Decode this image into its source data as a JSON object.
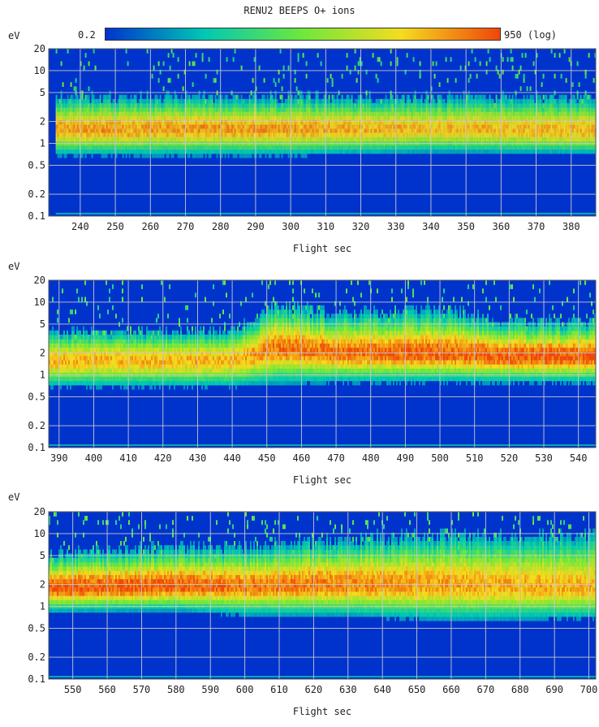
{
  "chart_data": {
    "type": "heatmap",
    "title": "RENU2 BEEPS O+ ions",
    "colorbar": {
      "min_label": "0.2",
      "max_label": "950 (log)",
      "min": 0.2,
      "max": 950,
      "scale": "log",
      "colors": [
        "#0033cc",
        "#00c8b4",
        "#6ee83c",
        "#f5dc1e",
        "#f0460a"
      ]
    },
    "ylabel": "eV",
    "yscale": "log",
    "ylim": [
      0.1,
      20
    ],
    "yticks": [
      0.1,
      0.2,
      0.5,
      1,
      2,
      5,
      10,
      20
    ],
    "ytick_labels": [
      "0.1",
      "0.2",
      "0.5",
      "1",
      "2",
      "5",
      "10",
      "20"
    ],
    "xlabel": "Flight sec",
    "grid": true,
    "panels": [
      {
        "xlim": [
          231,
          387
        ],
        "xticks": [
          240,
          250,
          260,
          270,
          280,
          290,
          300,
          310,
          320,
          330,
          340,
          350,
          360,
          370,
          380
        ],
        "xtick_labels": [
          "240",
          "250",
          "260",
          "270",
          "280",
          "290",
          "300",
          "310",
          "320",
          "330",
          "340",
          "350",
          "360",
          "370",
          "380"
        ],
        "data_start": 233,
        "profile": [
          {
            "t": 233,
            "peak_eV": 1.6,
            "low_eV": 0.95,
            "high_eV": 2.6,
            "intensity": 0.85
          },
          {
            "t": 300,
            "peak_eV": 1.6,
            "low_eV": 0.95,
            "high_eV": 2.6,
            "intensity": 0.85
          },
          {
            "t": 340,
            "peak_eV": 1.6,
            "low_eV": 1.0,
            "high_eV": 2.6,
            "intensity": 0.8
          },
          {
            "t": 387,
            "peak_eV": 1.5,
            "low_eV": 0.95,
            "high_eV": 2.5,
            "intensity": 0.82
          }
        ]
      },
      {
        "xlim": [
          387,
          545
        ],
        "xticks": [
          390,
          400,
          410,
          420,
          430,
          440,
          450,
          460,
          470,
          480,
          490,
          500,
          510,
          520,
          530,
          540
        ],
        "xtick_labels": [
          "390",
          "400",
          "410",
          "420",
          "430",
          "440",
          "450",
          "460",
          "470",
          "480",
          "490",
          "500",
          "510",
          "520",
          "530",
          "540"
        ],
        "data_start": 387,
        "profile": [
          {
            "t": 387,
            "peak_eV": 1.6,
            "low_eV": 0.95,
            "high_eV": 2.5,
            "intensity": 0.82
          },
          {
            "t": 440,
            "peak_eV": 1.6,
            "low_eV": 0.95,
            "high_eV": 2.5,
            "intensity": 0.82
          },
          {
            "t": 453,
            "peak_eV": 2.4,
            "low_eV": 1.2,
            "high_eV": 4.5,
            "intensity": 0.92
          },
          {
            "t": 470,
            "peak_eV": 2.0,
            "low_eV": 1.15,
            "high_eV": 3.6,
            "intensity": 0.93
          },
          {
            "t": 500,
            "peak_eV": 2.0,
            "low_eV": 1.15,
            "high_eV": 3.8,
            "intensity": 0.95
          },
          {
            "t": 520,
            "peak_eV": 1.8,
            "low_eV": 1.1,
            "high_eV": 3.0,
            "intensity": 0.97
          },
          {
            "t": 545,
            "peak_eV": 1.8,
            "low_eV": 1.1,
            "high_eV": 3.0,
            "intensity": 0.98
          }
        ]
      },
      {
        "xlim": [
          543,
          702
        ],
        "xticks": [
          550,
          560,
          570,
          580,
          590,
          600,
          610,
          620,
          630,
          640,
          650,
          660,
          670,
          680,
          690,
          700
        ],
        "xtick_labels": [
          "550",
          "560",
          "570",
          "580",
          "590",
          "600",
          "610",
          "620",
          "630",
          "640",
          "650",
          "660",
          "670",
          "680",
          "690",
          "700"
        ],
        "data_start": 543,
        "profile": [
          {
            "t": 543,
            "peak_eV": 1.8,
            "low_eV": 1.15,
            "high_eV": 3.0,
            "intensity": 0.98
          },
          {
            "t": 580,
            "peak_eV": 1.9,
            "low_eV": 1.2,
            "high_eV": 3.4,
            "intensity": 0.97
          },
          {
            "t": 600,
            "peak_eV": 1.9,
            "low_eV": 1.1,
            "high_eV": 3.4,
            "intensity": 0.92
          },
          {
            "t": 630,
            "peak_eV": 2.0,
            "low_eV": 1.1,
            "high_eV": 4.0,
            "intensity": 0.9
          },
          {
            "t": 660,
            "peak_eV": 2.0,
            "low_eV": 1.0,
            "high_eV": 4.2,
            "intensity": 0.85
          },
          {
            "t": 702,
            "peak_eV": 1.8,
            "low_eV": 1.0,
            "high_eV": 4.0,
            "intensity": 0.82
          }
        ]
      }
    ]
  }
}
